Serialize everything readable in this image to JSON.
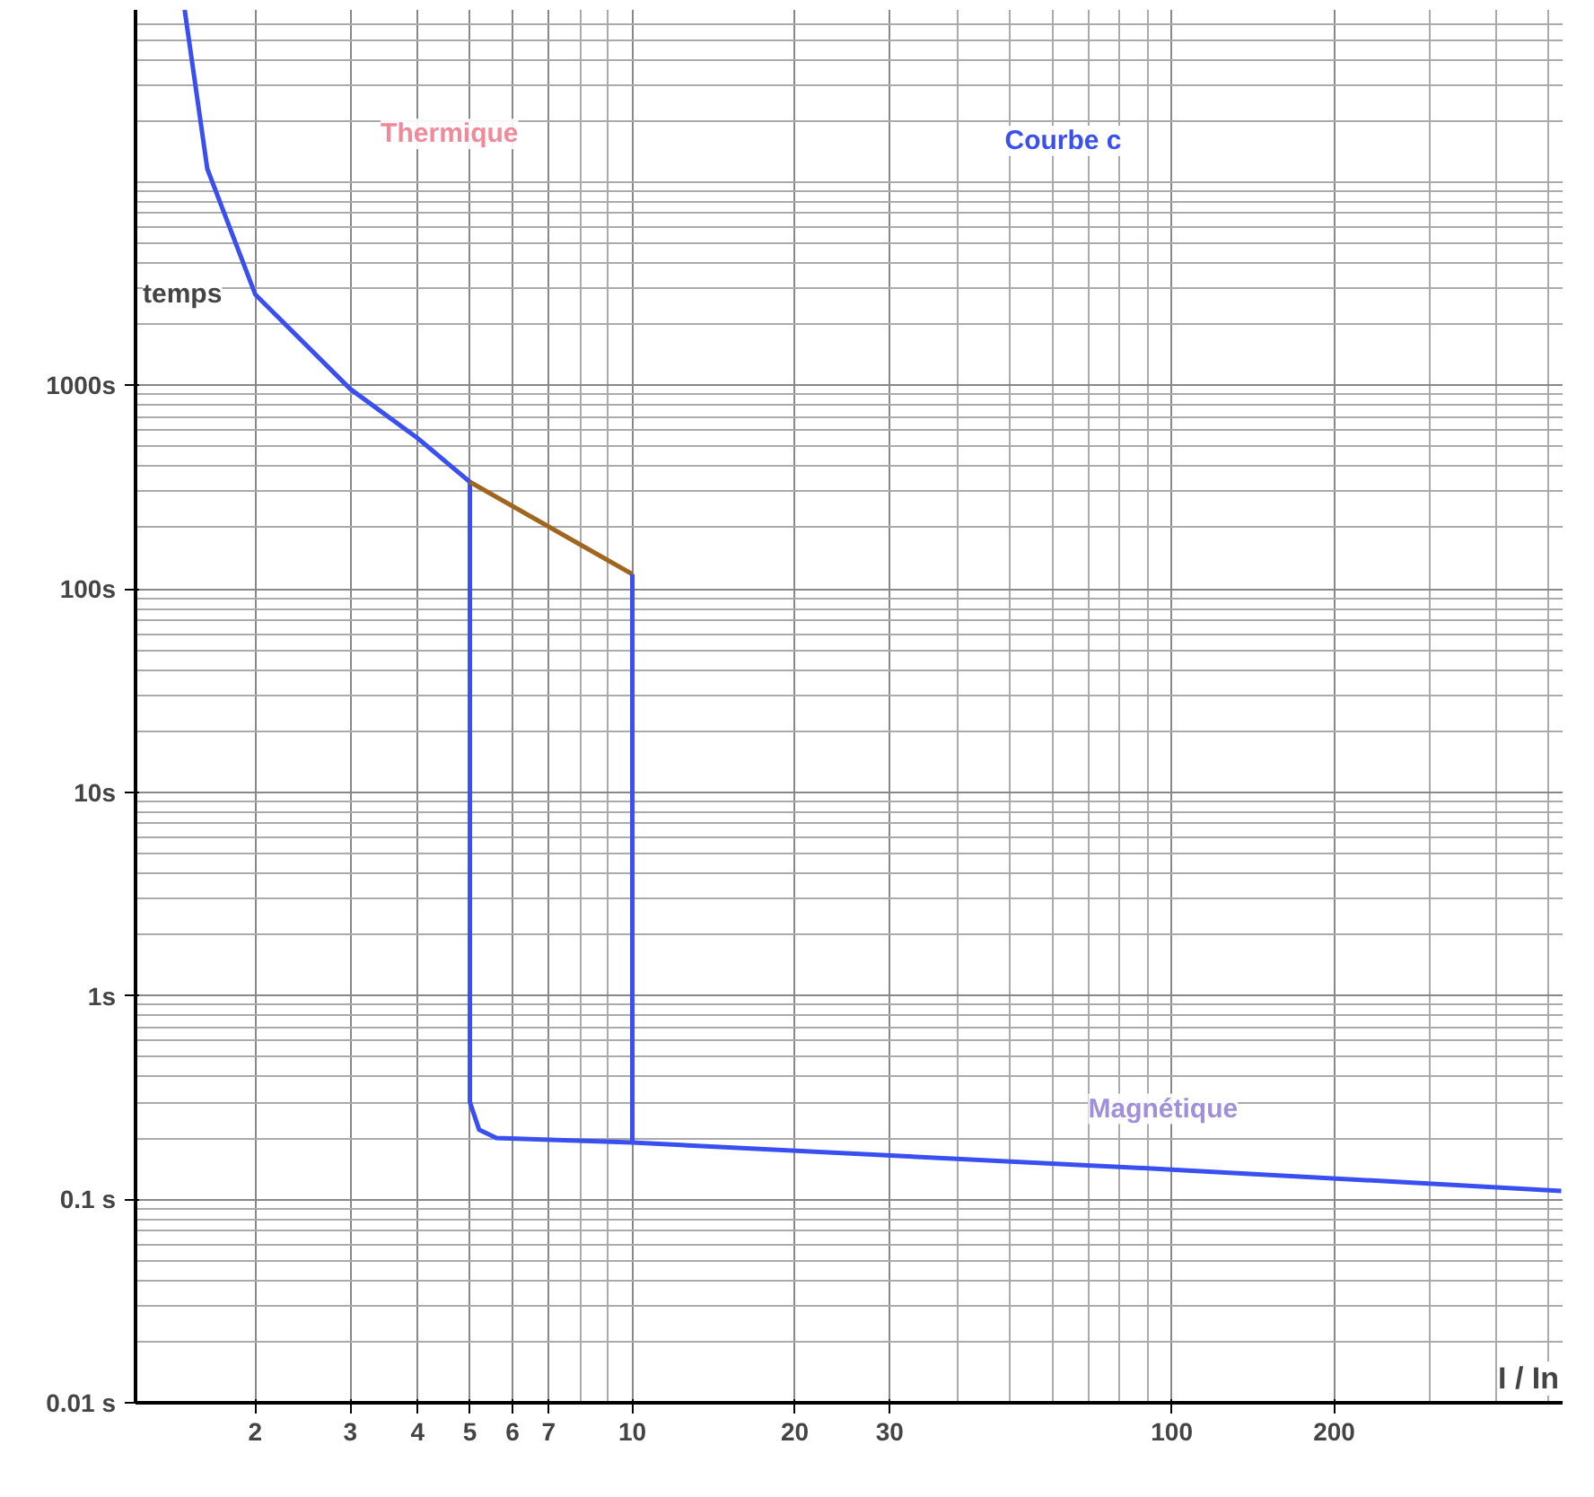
{
  "chart_data": {
    "type": "line",
    "ylabel": "temps",
    "xlabel": "I / In",
    "log": "xy",
    "grid": true,
    "xlim": [
      1.2,
      530
    ],
    "ylim": [
      0.01,
      70000
    ],
    "xticks": [
      2,
      3,
      4,
      5,
      6,
      7,
      10,
      20,
      30,
      100,
      200
    ],
    "yticks": [
      {
        "value": 0.01,
        "label": "0.01 s"
      },
      {
        "value": 0.1,
        "label": "0.1 s"
      },
      {
        "value": 1,
        "label": "1s"
      },
      {
        "value": 10,
        "label": "10s"
      },
      {
        "value": 100,
        "label": "100s"
      },
      {
        "value": 1000,
        "label": "1000s"
      }
    ],
    "series": [
      {
        "color": "#3a4ff0",
        "x": [
          1.48,
          1.63,
          2,
          3,
          4,
          5,
          5,
          5.2,
          5.6,
          10,
          100,
          527
        ],
        "values": [
          70000,
          11600,
          2800,
          960,
          550,
          335,
          0.3,
          0.22,
          0.2,
          0.19,
          0.14,
          0.11
        ]
      },
      {
        "color": "#a0661e",
        "x": [
          5,
          10
        ],
        "values": [
          335,
          118
        ]
      },
      {
        "color": "#3a4ff0",
        "x": [
          10,
          10
        ],
        "values": [
          118,
          0.19
        ]
      }
    ],
    "annotations": [
      "Thermique",
      "Courbe c",
      "Magnétique"
    ]
  }
}
